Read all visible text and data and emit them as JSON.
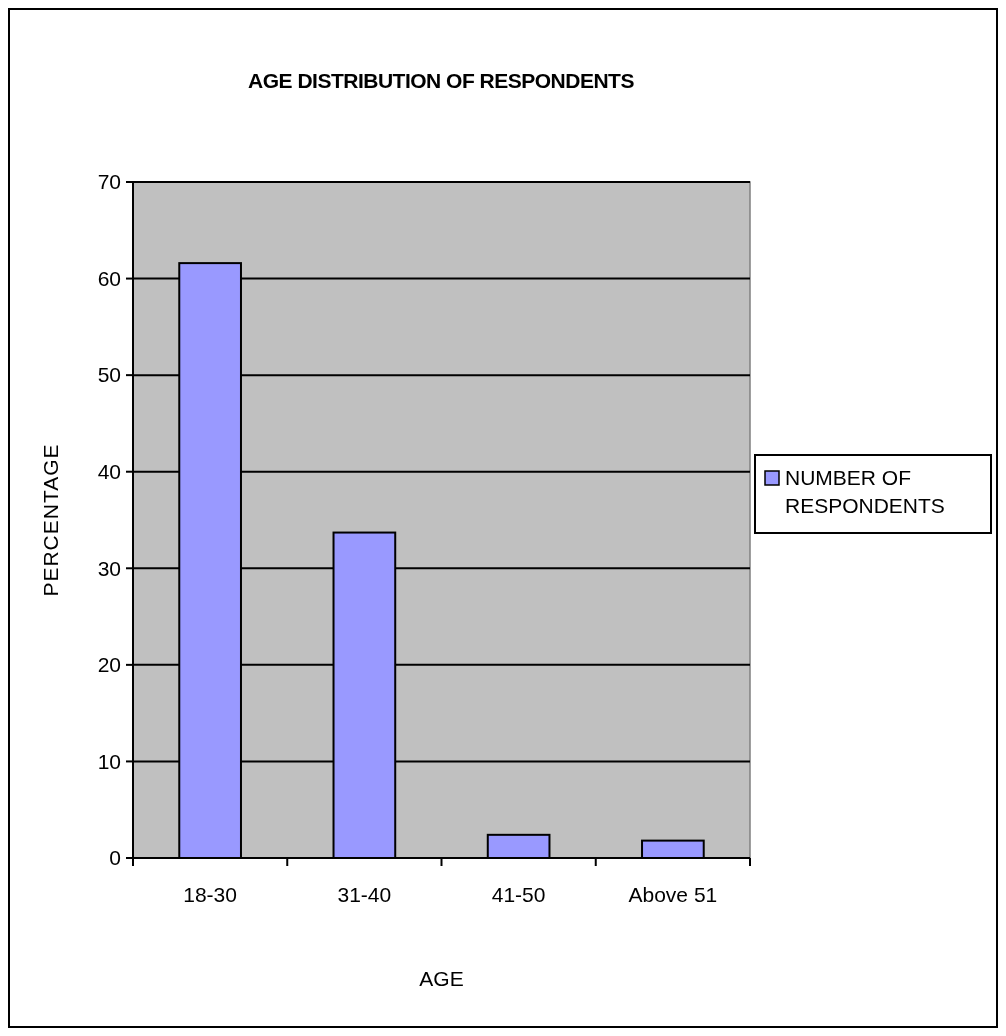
{
  "chart_data": {
    "type": "bar",
    "title": "AGE DISTRIBUTION OF RESPONDENTS",
    "xlabel": "AGE",
    "ylabel": "PERCENTAGE",
    "categories": [
      "18-30",
      "31-40",
      "41-50",
      "Above 51"
    ],
    "series": [
      {
        "name": "NUMBER OF RESPONDENTS",
        "color": "#9999ff",
        "values": [
          61.6,
          33.7,
          2.4,
          1.8
        ]
      }
    ],
    "ylim": [
      0,
      70
    ],
    "yticks": [
      0,
      10,
      20,
      30,
      40,
      50,
      60,
      70
    ],
    "grid": "y",
    "legend": "right"
  }
}
